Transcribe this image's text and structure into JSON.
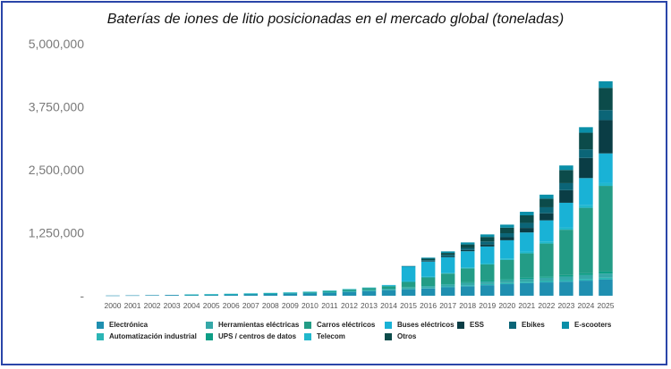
{
  "chart_data": {
    "type": "bar",
    "stacked": true,
    "title": "Baterías de iones de litio posicionadas en el mercado global (toneladas)",
    "xlabel": "",
    "ylabel": "",
    "ylim": [
      0,
      5000000
    ],
    "yticks": [
      "-",
      "1,250,000",
      "2,500,000",
      "3,750,000",
      "5,000,000"
    ],
    "ytick_values": [
      0,
      1250000,
      2500000,
      3750000,
      5000000
    ],
    "grid": false,
    "legend_position": "bottom",
    "categories": [
      "2000",
      "2001",
      "2002",
      "2003",
      "2004",
      "2005",
      "2006",
      "2007",
      "2008",
      "2009",
      "2010",
      "2011",
      "2012",
      "2013",
      "2014",
      "2015",
      "2016",
      "2017",
      "2018",
      "2019",
      "2020",
      "2021",
      "2022",
      "2023",
      "2024",
      "2025"
    ],
    "series": [
      {
        "name": "Electrónica",
        "color": "#1f8fb0",
        "values": [
          5000,
          8000,
          12000,
          16000,
          20000,
          24000,
          30000,
          36000,
          42000,
          48000,
          55000,
          65000,
          80000,
          95000,
          110000,
          125000,
          145000,
          170000,
          190000,
          210000,
          230000,
          250000,
          265000,
          280000,
          300000,
          320000
        ]
      },
      {
        "name": "Automatización industrial",
        "color": "#2bb5b5",
        "values": [
          0,
          0,
          0,
          0,
          500,
          800,
          1000,
          1500,
          2000,
          2500,
          3000,
          4000,
          5000,
          6000,
          8000,
          10000,
          12000,
          15000,
          20000,
          22000,
          24000,
          26000,
          28000,
          30000,
          35000,
          40000
        ]
      },
      {
        "name": "Herramientas eléctricas",
        "color": "#35a8a8",
        "values": [
          0,
          0,
          0,
          0,
          2000,
          3000,
          5000,
          6000,
          8000,
          10000,
          12000,
          15000,
          18000,
          20000,
          25000,
          30000,
          35000,
          40000,
          45000,
          50000,
          55000,
          60000,
          65000,
          70000,
          75000,
          80000
        ]
      },
      {
        "name": "UPS / centros de datos",
        "color": "#0e9e86",
        "values": [
          0,
          0,
          0,
          0,
          500,
          800,
          1000,
          1500,
          2000,
          2500,
          3000,
          4000,
          5000,
          6000,
          8000,
          10000,
          12000,
          15000,
          18000,
          20000,
          22000,
          25000,
          28000,
          30000,
          35000,
          40000
        ]
      },
      {
        "name": "Carros eléctricos",
        "color": "#239c86",
        "values": [
          0,
          0,
          0,
          0,
          0,
          0,
          0,
          0,
          0,
          0,
          5000,
          10000,
          20000,
          30000,
          40000,
          100000,
          160000,
          200000,
          270000,
          320000,
          380000,
          480000,
          650000,
          900000,
          1300000,
          1700000
        ]
      },
      {
        "name": "Telecom",
        "color": "#21b8cc",
        "values": [
          0,
          0,
          0,
          0,
          500,
          800,
          1000,
          1500,
          2000,
          2500,
          3000,
          4000,
          5000,
          6000,
          8000,
          10000,
          12000,
          15000,
          20000,
          25000,
          30000,
          35000,
          40000,
          45000,
          50000,
          55000
        ]
      },
      {
        "name": "Buses eléctricos",
        "color": "#19b2d6",
        "values": [
          0,
          0,
          0,
          0,
          0,
          0,
          0,
          0,
          0,
          0,
          0,
          0,
          0,
          0,
          15000,
          300000,
          300000,
          310000,
          320000,
          330000,
          360000,
          380000,
          420000,
          490000,
          540000,
          590000
        ]
      },
      {
        "name": "ESS",
        "color": "#0a3d45",
        "values": [
          0,
          0,
          0,
          0,
          0,
          0,
          0,
          0,
          0,
          0,
          0,
          0,
          0,
          0,
          0,
          0,
          10000,
          15000,
          25000,
          40000,
          60000,
          90000,
          140000,
          250000,
          400000,
          660000
        ]
      },
      {
        "name": "Ebikes",
        "color": "#0b6577",
        "values": [
          0,
          0,
          0,
          0,
          0,
          0,
          0,
          0,
          0,
          0,
          0,
          0,
          0,
          0,
          0,
          5000,
          20000,
          30000,
          40000,
          60000,
          80000,
          100000,
          120000,
          140000,
          170000,
          200000
        ]
      },
      {
        "name": "Otros",
        "color": "#0c4b4a",
        "values": [
          0,
          0,
          0,
          0,
          0,
          0,
          0,
          0,
          0,
          0,
          0,
          0,
          0,
          0,
          0,
          0,
          30000,
          40000,
          70000,
          90000,
          110000,
          150000,
          170000,
          260000,
          330000,
          440000
        ]
      },
      {
        "name": "E-scooters",
        "color": "#0a8fa8",
        "values": [
          0,
          0,
          0,
          0,
          0,
          0,
          0,
          0,
          0,
          0,
          0,
          0,
          0,
          0,
          0,
          0,
          20000,
          30000,
          40000,
          50000,
          60000,
          70000,
          80000,
          90000,
          110000,
          130000
        ]
      }
    ]
  },
  "legend": [
    {
      "label": "Electrónica",
      "color": "#1f8fb0"
    },
    {
      "label": "Herramientas eléctricas",
      "color": "#35a8a8"
    },
    {
      "label": "Carros eléctricos",
      "color": "#239c86"
    },
    {
      "label": "Buses eléctricos",
      "color": "#19b2d6"
    },
    {
      "label": "ESS",
      "color": "#0a3d45"
    },
    {
      "label": "Ebikes",
      "color": "#0b6577"
    },
    {
      "label": "E-scooters",
      "color": "#0a8fa8"
    },
    {
      "label": "Automatización industrial",
      "color": "#2bb5b5"
    },
    {
      "label": "UPS / centros de datos",
      "color": "#0e9e86"
    },
    {
      "label": "Telecom",
      "color": "#21b8cc"
    },
    {
      "label": "Otros",
      "color": "#0c4b4a"
    }
  ]
}
